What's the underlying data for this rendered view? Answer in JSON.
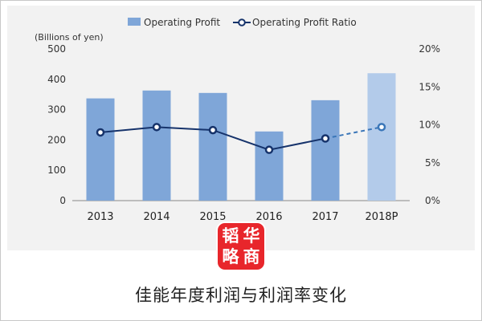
{
  "chart_data": {
    "type": "bar",
    "categories": [
      "2013",
      "2014",
      "2015",
      "2016",
      "2017",
      "2018P"
    ],
    "series": [
      {
        "name": "Operating Profit",
        "kind": "bar",
        "axis": "left",
        "color": "#7fa6d8",
        "forecast_color": "#b3cbea",
        "values": [
          337,
          363,
          355,
          228,
          331,
          420
        ]
      },
      {
        "name": "Operating Profit Ratio",
        "kind": "line",
        "axis": "right",
        "color": "#16336b",
        "values": [
          9.0,
          9.7,
          9.3,
          6.7,
          8.2,
          9.7
        ]
      }
    ],
    "forecast_category": "2018P",
    "ylabel": "(Billions of yen)",
    "ylim": [
      0,
      500
    ],
    "y_ticks": [
      "0",
      "100",
      "200",
      "300",
      "400",
      "500"
    ],
    "y2lim": [
      0,
      20
    ],
    "y2_ticks": [
      "0%",
      "5%",
      "10%",
      "15%",
      "20%"
    ],
    "legend_position": "top",
    "grid": false
  },
  "logo_text": "韬华略商",
  "caption": "佳能年度利润与利润率变化"
}
